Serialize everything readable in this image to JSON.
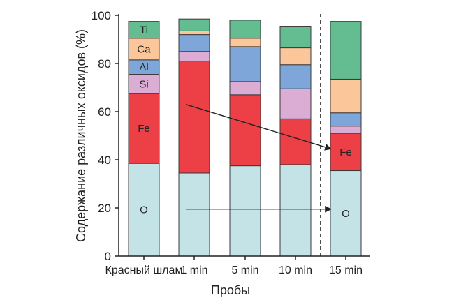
{
  "chart_data": {
    "type": "bar",
    "stacked": true,
    "title": "",
    "xlabel": "Пробы",
    "ylabel": "Содержание различных оксидов (%)",
    "ylim": [
      0,
      100
    ],
    "yticks": [
      0,
      20,
      40,
      60,
      80,
      100
    ],
    "categories": [
      "Красный шлам",
      "1 min",
      "5 min",
      "10 min",
      "15 min"
    ],
    "series": [
      {
        "name": "O",
        "color": "#c3e3e6",
        "values": [
          38.5,
          34.5,
          37.5,
          38.0,
          35.5
        ]
      },
      {
        "name": "Fe",
        "color": "#ec4046",
        "values": [
          29.0,
          46.5,
          29.5,
          19.0,
          15.5
        ]
      },
      {
        "name": "Si",
        "color": "#dbacd4",
        "values": [
          8.0,
          4.0,
          5.5,
          12.5,
          3.0
        ]
      },
      {
        "name": "Al",
        "color": "#7fa6d8",
        "values": [
          6.0,
          7.0,
          14.5,
          10.0,
          5.5
        ]
      },
      {
        "name": "Ca",
        "color": "#fbc79a",
        "values": [
          9.0,
          1.5,
          3.5,
          7.0,
          14.0
        ]
      },
      {
        "name": "Ti",
        "color": "#64bd91",
        "values": [
          7.0,
          5.0,
          7.5,
          9.0,
          24.0
        ]
      }
    ],
    "segment_labels": [
      {
        "category": 0,
        "series": "O"
      },
      {
        "category": 0,
        "series": "Fe"
      },
      {
        "category": 0,
        "series": "Si"
      },
      {
        "category": 0,
        "series": "Al"
      },
      {
        "category": 0,
        "series": "Ca"
      },
      {
        "category": 0,
        "series": "Ti"
      },
      {
        "category": 4,
        "series": "Fe"
      },
      {
        "category": 4,
        "series": "O"
      }
    ],
    "annotations": [
      {
        "type": "arrow",
        "from": {
          "category": 1,
          "y": 63
        },
        "to": {
          "category": 4,
          "y": 44.5
        }
      },
      {
        "type": "arrow",
        "from": {
          "category": 1,
          "y": 19.5
        },
        "to": {
          "category": 4,
          "y": 19.5
        }
      },
      {
        "type": "dashed-separator",
        "between": [
          3,
          4
        ]
      }
    ],
    "grid": false,
    "legend": "none"
  }
}
